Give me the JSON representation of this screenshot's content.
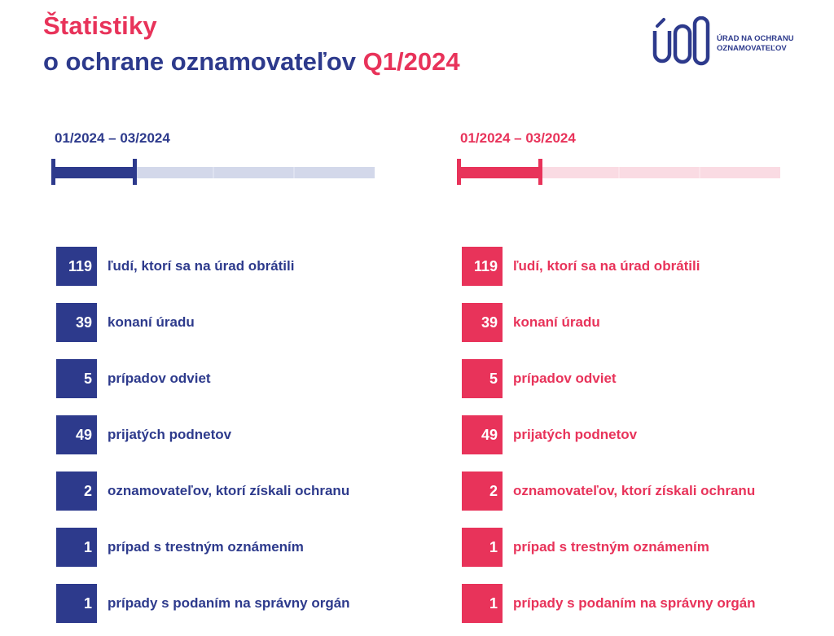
{
  "header": {
    "title_line1": "Štatistiky",
    "title_line2_main": "o ochrane oznamovateľov",
    "title_line2_accent": "Q1/2024"
  },
  "logo": {
    "mark": "ÚOO",
    "line1": "ÚRAD NA OCHRANU",
    "line2": "OZNAMOVATEĽOV"
  },
  "colors": {
    "primary": "#2d3a8c",
    "accent": "#e8335a",
    "primary_light": "#d3d8ea",
    "accent_light": "#fadbe3"
  },
  "progress": {
    "filled_fraction": 0.25,
    "segments": 4
  },
  "columns": [
    {
      "period": "01/2024 – 03/2024",
      "stats": [
        {
          "value": "119",
          "label": "ľudí, ktorí sa na úrad obrátili"
        },
        {
          "value": "39",
          "label": "konaní úradu"
        },
        {
          "value": "5",
          "label": "prípadov odviet"
        },
        {
          "value": "49",
          "label": "prijatých podnetov"
        },
        {
          "value": "2",
          "label": "oznamovateľov, ktorí získali ochranu"
        },
        {
          "value": "1",
          "label": "prípad s trestným oznámením"
        },
        {
          "value": "1",
          "label": "prípady s podaním na správny orgán"
        }
      ]
    },
    {
      "period": "01/2024 – 03/2024",
      "stats": [
        {
          "value": "119",
          "label": "ľudí, ktorí sa na úrad obrátili"
        },
        {
          "value": "39",
          "label": "konaní úradu"
        },
        {
          "value": "5",
          "label": "prípadov odviet"
        },
        {
          "value": "49",
          "label": "prijatých podnetov"
        },
        {
          "value": "2",
          "label": "oznamovateľov, ktorí získali ochranu"
        },
        {
          "value": "1",
          "label": "prípad s trestným oznámením"
        },
        {
          "value": "1",
          "label": "prípady s podaním na správny orgán"
        }
      ]
    }
  ]
}
